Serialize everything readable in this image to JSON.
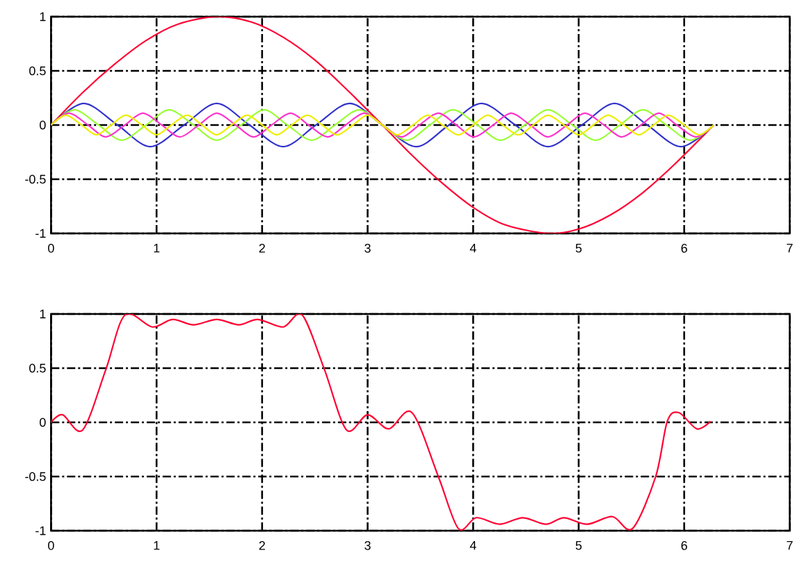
{
  "chart_data": [
    {
      "type": "line",
      "xlim": [
        0,
        7
      ],
      "ylim": [
        -1,
        1
      ],
      "xticks": [
        0,
        1,
        2,
        3,
        4,
        5,
        6,
        7
      ],
      "yticks": [
        -1,
        -0.5,
        0,
        0.5,
        1
      ],
      "grid": true,
      "line_style": "solid",
      "marker": "none",
      "series": [
        {
          "color": "#ff0033",
          "x": [
            0,
            0.3,
            0.6,
            0.9,
            1.2,
            1.57,
            1.9,
            2.2,
            2.5,
            2.8,
            3.14,
            3.4,
            3.7,
            4.0,
            4.3,
            4.71,
            5.0,
            5.3,
            5.6,
            5.9,
            6.28
          ],
          "values": [
            0,
            0.3,
            0.56,
            0.78,
            0.93,
            1,
            0.95,
            0.81,
            0.6,
            0.33,
            0,
            -0.26,
            -0.53,
            -0.76,
            -0.92,
            -1,
            -0.96,
            -0.83,
            -0.63,
            -0.37,
            0
          ]
        },
        {
          "color": "#3333cc",
          "x": [
            0,
            0.31,
            0.63,
            0.94,
            1.26,
            1.57,
            1.88,
            2.2,
            2.51,
            2.83,
            3.14,
            3.46,
            3.77,
            4.08,
            4.4,
            4.71,
            5.03,
            5.34,
            5.65,
            5.97,
            6.28
          ],
          "values": [
            0,
            0.2,
            0,
            -0.2,
            0,
            0.2,
            0,
            -0.2,
            0,
            0.2,
            0,
            -0.2,
            0,
            0.2,
            0,
            -0.2,
            0,
            0.2,
            0,
            -0.2,
            0
          ]
        },
        {
          "color": "#99ff33",
          "x": [
            0,
            0.22,
            0.45,
            0.67,
            0.9,
            1.12,
            1.35,
            1.57,
            1.8,
            2.02,
            2.24,
            2.47,
            2.69,
            2.92,
            3.14,
            3.37,
            3.59,
            3.81,
            4.04,
            4.26,
            4.49,
            4.71,
            4.94,
            5.16,
            5.39,
            5.61,
            5.83,
            6.06,
            6.28
          ],
          "values": [
            0,
            0.14,
            0,
            -0.14,
            0,
            0.14,
            0,
            -0.14,
            0,
            0.14,
            0,
            -0.14,
            0,
            0.14,
            0,
            -0.14,
            0,
            0.14,
            0,
            -0.14,
            0,
            0.14,
            0,
            -0.14,
            0,
            0.14,
            0,
            -0.14,
            0
          ]
        },
        {
          "color": "#ff33cc",
          "x": [
            0,
            0.17,
            0.35,
            0.52,
            0.7,
            0.87,
            1.05,
            1.22,
            1.4,
            1.57,
            1.75,
            1.92,
            2.09,
            2.27,
            2.44,
            2.62,
            2.79,
            2.97,
            3.14,
            3.32,
            3.49,
            3.67,
            3.84,
            4.01,
            4.19,
            4.36,
            4.54,
            4.71,
            4.89,
            5.06,
            5.24,
            5.41,
            5.59,
            5.76,
            5.93,
            6.11,
            6.28
          ],
          "values": [
            0,
            0.11,
            0,
            -0.11,
            0,
            0.11,
            0,
            -0.11,
            0,
            0.11,
            0,
            -0.11,
            0,
            0.11,
            0,
            -0.11,
            0,
            0.11,
            0,
            -0.11,
            0,
            0.11,
            0,
            -0.11,
            0,
            0.11,
            0,
            -0.11,
            0,
            0.11,
            0,
            -0.11,
            0,
            0.11,
            0,
            -0.11,
            0
          ]
        },
        {
          "color": "#eeee00",
          "x": [
            0,
            0.14,
            0.29,
            0.43,
            0.57,
            0.71,
            0.86,
            1.0,
            1.14,
            1.29,
            1.43,
            1.57,
            1.71,
            1.86,
            2.0,
            2.14,
            2.28,
            2.43,
            2.57,
            2.71,
            2.86,
            3.0,
            3.14,
            3.28,
            3.43,
            3.57,
            3.71,
            3.86,
            4.0,
            4.14,
            4.28,
            4.43,
            4.57,
            4.71,
            4.86,
            5.0,
            5.14,
            5.28,
            5.43,
            5.57,
            5.71,
            5.85,
            6.0,
            6.14,
            6.28
          ],
          "values": [
            0,
            0.09,
            0,
            -0.09,
            0,
            0.09,
            0,
            -0.09,
            0,
            0.09,
            0,
            -0.09,
            0,
            0.09,
            0,
            -0.09,
            0,
            0.09,
            0,
            -0.09,
            0,
            0.09,
            0,
            -0.09,
            0,
            0.09,
            0,
            -0.09,
            0,
            0.09,
            0,
            -0.09,
            0,
            0.09,
            0,
            -0.09,
            0,
            0.09,
            0,
            -0.09,
            0,
            0.09,
            0,
            -0.09,
            0
          ]
        }
      ]
    },
    {
      "type": "line",
      "xlim": [
        0,
        7
      ],
      "ylim": [
        -1,
        1
      ],
      "xticks": [
        0,
        1,
        2,
        3,
        4,
        5,
        6,
        7
      ],
      "yticks": [
        -1,
        -0.5,
        0,
        0.5,
        1
      ],
      "grid": true,
      "line_style": "solid",
      "marker": "none",
      "series": [
        {
          "color": "#ff0033",
          "x": [
            0,
            0.11,
            0.3,
            0.52,
            0.7,
            0.96,
            1.15,
            1.35,
            1.57,
            1.78,
            1.96,
            2.2,
            2.38,
            2.59,
            2.8,
            3.0,
            3.2,
            3.42,
            3.67,
            3.86,
            4.03,
            4.25,
            4.47,
            4.69,
            4.86,
            5.08,
            5.32,
            5.51,
            5.73,
            5.84,
            5.95,
            6.12,
            6.25
          ],
          "values": [
            0,
            0.07,
            -0.07,
            0.49,
            0.99,
            0.88,
            0.95,
            0.9,
            0.95,
            0.9,
            0.95,
            0.88,
            0.99,
            0.49,
            -0.07,
            0.07,
            -0.06,
            0.09,
            -0.5,
            -0.98,
            -0.88,
            -0.94,
            -0.88,
            -0.94,
            -0.88,
            -0.94,
            -0.87,
            -0.98,
            -0.5,
            0.01,
            0.09,
            -0.06,
            0.01
          ]
        }
      ]
    }
  ]
}
